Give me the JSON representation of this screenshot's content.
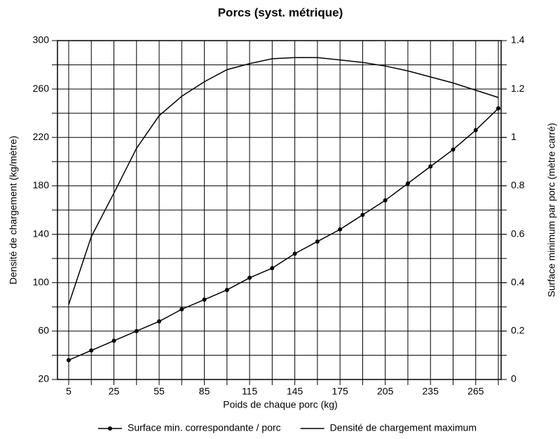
{
  "chart_data": {
    "type": "line",
    "title": "Porcs (syst. métrique)",
    "x_label": "Poids de chaque porc (kg)",
    "y_label": "Densité de chargement (kg/mètre)",
    "y2_label": "Surface minimum par porc (mètre carré)",
    "categories": [
      "5",
      null,
      "25",
      null,
      "55",
      null,
      "85",
      null,
      "115",
      null,
      "145",
      null,
      "175",
      null,
      "205",
      null,
      "235",
      null,
      "265",
      null
    ],
    "series": [
      {
        "name": "Surface min. correspondante / porc",
        "color": "#000000",
        "axis": "y2",
        "marker": true,
        "values": [
          0.08,
          0.12,
          0.16,
          0.2,
          0.24,
          0.29,
          0.33,
          0.37,
          0.42,
          0.46,
          0.52,
          0.57,
          0.62,
          0.68,
          0.74,
          0.81,
          0.88,
          0.95,
          1.03,
          1.12
        ]
      },
      {
        "name": "Densité de chargement maximum",
        "color": "#000000",
        "axis": "y",
        "marker": false,
        "values": [
          82,
          138,
          174,
          211,
          238,
          254,
          266,
          276,
          281,
          285,
          286,
          286,
          284,
          282,
          279,
          275,
          270,
          265,
          259,
          253
        ]
      }
    ],
    "ylim": [
      20,
      300
    ],
    "yticks": [
      20,
      60,
      100,
      140,
      180,
      220,
      260,
      300
    ],
    "yminor_ticks": [
      40,
      80,
      120,
      160,
      200,
      240,
      280
    ],
    "y2lim": [
      0,
      1.4
    ],
    "y2ticks": [
      0,
      0.2,
      0.4,
      0.6,
      0.8,
      1,
      1.2,
      1.4
    ],
    "grid": true,
    "legend": "bottom"
  }
}
